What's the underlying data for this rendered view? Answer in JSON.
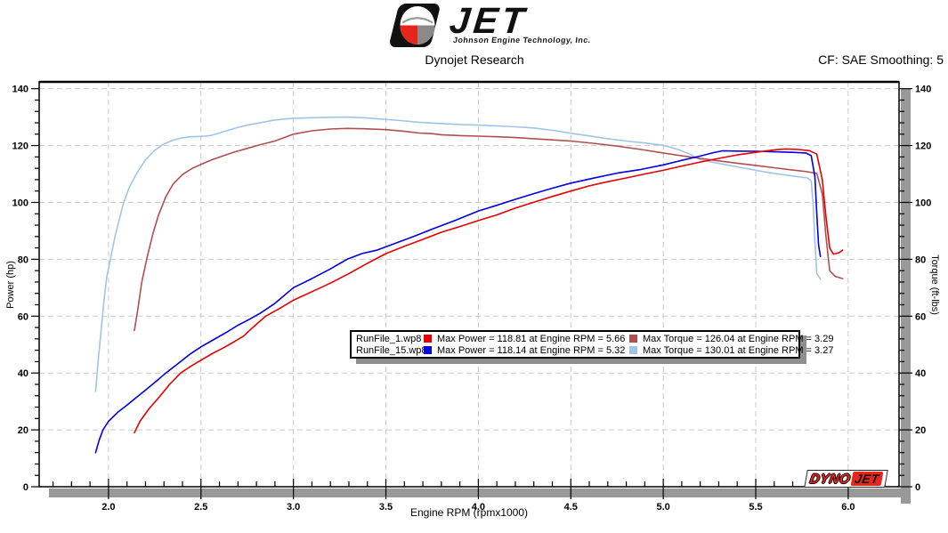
{
  "header": {
    "logo": {
      "jet_text": "JET",
      "tagline": "Johnson Engine Technology, Inc."
    },
    "subtitle": "Dynojet Research",
    "smoothing_label": "CF: SAE Smoothing: 5"
  },
  "legend": {
    "rows": [
      {
        "file": "RunFile_1.wp8",
        "power_color": "#e60000",
        "power_label": "Max Power = 118.81 at Engine RPM = 5.66",
        "torque_color": "#b04f4f",
        "torque_label": "Max Torque = 126.04 at Engine RPM = 3.29"
      },
      {
        "file": "RunFile_15.wp8",
        "power_color": "#0000e0",
        "power_label": "Max Power = 118.14 at Engine RPM = 5.32",
        "torque_color": "#a0c4e8",
        "torque_label": "Max Torque = 130.01 at Engine RPM = 3.27"
      }
    ]
  },
  "watermark": {
    "dyno": "DYNO",
    "jet": "JET"
  },
  "chart_data": {
    "type": "line",
    "xlabel": "Engine RPM (rpmx1000)",
    "ylabel_left": "Power (hp)",
    "ylabel_right": "Torque (ft-lbs)",
    "xlim": [
      1.625,
      6.275
    ],
    "ylim": [
      0,
      142.4
    ],
    "x_major_ticks": [
      2.0,
      2.5,
      3.0,
      3.5,
      4.0,
      4.5,
      5.0,
      5.5,
      6.0
    ],
    "x_tick_labels": [
      "2.0",
      "2.5",
      "3.0",
      "3.5",
      "4.0",
      "4.5",
      "5.0",
      "5.5",
      "6.0"
    ],
    "x_minor_step": 0.1,
    "y_major_ticks": [
      0,
      20,
      40,
      60,
      80,
      100,
      120,
      140
    ],
    "y_tick_labels": [
      "0",
      "20",
      "40",
      "60",
      "80",
      "100",
      "120",
      "140"
    ],
    "y_minor_step": 4,
    "grid": "dashed-major",
    "legend_position": "center",
    "series": [
      {
        "name": "runfile-15-torque",
        "run": "RunFile_15.wp8",
        "unit": "ft-lbs",
        "color": "#a0c4e8",
        "points": [
          [
            1.93,
            33.5
          ],
          [
            1.945,
            45
          ],
          [
            1.96,
            55
          ],
          [
            1.975,
            65
          ],
          [
            1.99,
            73.5
          ],
          [
            2.01,
            80
          ],
          [
            2.035,
            88
          ],
          [
            2.06,
            94.5
          ],
          [
            2.08,
            99.5
          ],
          [
            2.11,
            105
          ],
          [
            2.15,
            110
          ],
          [
            2.2,
            115
          ],
          [
            2.25,
            118.3
          ],
          [
            2.3,
            120.6
          ],
          [
            2.35,
            121.9
          ],
          [
            2.4,
            122.7
          ],
          [
            2.44,
            123.1
          ],
          [
            2.5,
            123.2
          ],
          [
            2.55,
            123.5
          ],
          [
            2.6,
            124.4
          ],
          [
            2.65,
            125.4
          ],
          [
            2.7,
            126.4
          ],
          [
            2.76,
            127.3
          ],
          [
            2.82,
            128
          ],
          [
            2.9,
            129
          ],
          [
            3.0,
            129.6
          ],
          [
            3.1,
            129.8
          ],
          [
            3.2,
            129.95
          ],
          [
            3.27,
            130.01
          ],
          [
            3.38,
            129.8
          ],
          [
            3.48,
            129.3
          ],
          [
            3.58,
            128.8
          ],
          [
            3.68,
            128.2
          ],
          [
            3.78,
            127.8
          ],
          [
            3.9,
            127.4
          ],
          [
            4.0,
            127.2
          ],
          [
            4.1,
            126.9
          ],
          [
            4.2,
            126.6
          ],
          [
            4.3,
            126.2
          ],
          [
            4.42,
            125.2
          ],
          [
            4.5,
            124.3
          ],
          [
            4.6,
            123.4
          ],
          [
            4.7,
            122.4
          ],
          [
            4.8,
            121.6
          ],
          [
            4.9,
            120.9
          ],
          [
            5.0,
            120.1
          ],
          [
            5.08,
            118.6
          ],
          [
            5.15,
            116.8
          ],
          [
            5.2,
            115
          ],
          [
            5.3,
            113.7
          ],
          [
            5.4,
            112.5
          ],
          [
            5.5,
            111.3
          ],
          [
            5.6,
            110.2
          ],
          [
            5.7,
            109.3
          ],
          [
            5.78,
            108.6
          ],
          [
            5.8,
            107.5
          ],
          [
            5.81,
            100
          ],
          [
            5.82,
            86
          ],
          [
            5.83,
            75
          ],
          [
            5.85,
            73
          ]
        ]
      },
      {
        "name": "runfile-1-torque",
        "run": "RunFile_1.wp8",
        "unit": "ft-lbs",
        "color": "#b04f4f",
        "points": [
          [
            2.14,
            55
          ],
          [
            2.16,
            63
          ],
          [
            2.18,
            72
          ],
          [
            2.21,
            81
          ],
          [
            2.24,
            89
          ],
          [
            2.27,
            95.5
          ],
          [
            2.31,
            102
          ],
          [
            2.35,
            106.5
          ],
          [
            2.4,
            109.8
          ],
          [
            2.45,
            111.9
          ],
          [
            2.5,
            113.4
          ],
          [
            2.56,
            115
          ],
          [
            2.62,
            116.4
          ],
          [
            2.68,
            117.7
          ],
          [
            2.75,
            119
          ],
          [
            2.82,
            120.3
          ],
          [
            2.9,
            121.6
          ],
          [
            3.0,
            124
          ],
          [
            3.1,
            125.2
          ],
          [
            3.2,
            125.8
          ],
          [
            3.29,
            126.04
          ],
          [
            3.38,
            125.9
          ],
          [
            3.5,
            125.6
          ],
          [
            3.6,
            125
          ],
          [
            3.68,
            124.4
          ],
          [
            3.75,
            124.2
          ],
          [
            3.8,
            123.8
          ],
          [
            3.9,
            123.5
          ],
          [
            4.0,
            123.3
          ],
          [
            4.1,
            123.1
          ],
          [
            4.2,
            122.8
          ],
          [
            4.3,
            122.4
          ],
          [
            4.4,
            122
          ],
          [
            4.5,
            121.6
          ],
          [
            4.62,
            120.8
          ],
          [
            4.75,
            119.8
          ],
          [
            4.88,
            118.6
          ],
          [
            5.0,
            117.4
          ],
          [
            5.1,
            116.4
          ],
          [
            5.2,
            115.5
          ],
          [
            5.3,
            114.6
          ],
          [
            5.4,
            113.8
          ],
          [
            5.5,
            113
          ],
          [
            5.6,
            112.2
          ],
          [
            5.7,
            111.4
          ],
          [
            5.78,
            110.8
          ],
          [
            5.83,
            110.2
          ],
          [
            5.86,
            103
          ],
          [
            5.88,
            88
          ],
          [
            5.9,
            76
          ],
          [
            5.93,
            74
          ],
          [
            5.97,
            73.2
          ]
        ]
      },
      {
        "name": "runfile-15-power",
        "run": "RunFile_15.wp8",
        "unit": "hp",
        "color": "#0000e0",
        "points": [
          [
            1.93,
            12
          ],
          [
            1.95,
            16.5
          ],
          [
            1.97,
            20
          ],
          [
            2.0,
            23
          ],
          [
            2.05,
            26.2
          ],
          [
            2.1,
            28.7
          ],
          [
            2.15,
            31.4
          ],
          [
            2.2,
            34
          ],
          [
            2.26,
            37.2
          ],
          [
            2.31,
            40
          ],
          [
            2.38,
            43.5
          ],
          [
            2.44,
            46.6
          ],
          [
            2.5,
            49.2
          ],
          [
            2.57,
            51.8
          ],
          [
            2.64,
            54.4
          ],
          [
            2.7,
            56.8
          ],
          [
            2.76,
            58.8
          ],
          [
            2.82,
            61
          ],
          [
            2.9,
            64.5
          ],
          [
            3.0,
            70
          ],
          [
            3.1,
            73.2
          ],
          [
            3.2,
            76.6
          ],
          [
            3.29,
            80
          ],
          [
            3.37,
            82
          ],
          [
            3.45,
            83.2
          ],
          [
            3.55,
            85.6
          ],
          [
            3.65,
            88
          ],
          [
            3.75,
            90.6
          ],
          [
            3.88,
            93.8
          ],
          [
            4.0,
            97
          ],
          [
            4.1,
            99
          ],
          [
            4.2,
            101.1
          ],
          [
            4.3,
            103.1
          ],
          [
            4.4,
            105
          ],
          [
            4.5,
            106.8
          ],
          [
            4.62,
            108.5
          ],
          [
            4.75,
            110.3
          ],
          [
            4.88,
            111.6
          ],
          [
            5.0,
            113.2
          ],
          [
            5.1,
            114.8
          ],
          [
            5.2,
            116.3
          ],
          [
            5.27,
            117.5
          ],
          [
            5.32,
            118.14
          ],
          [
            5.4,
            118.05
          ],
          [
            5.5,
            118
          ],
          [
            5.6,
            117.8
          ],
          [
            5.7,
            117.6
          ],
          [
            5.77,
            117.4
          ],
          [
            5.8,
            116.5
          ],
          [
            5.82,
            109
          ],
          [
            5.83,
            96
          ],
          [
            5.84,
            85
          ],
          [
            5.85,
            81
          ]
        ]
      },
      {
        "name": "runfile-1-power",
        "run": "RunFile_1.wp8",
        "unit": "hp",
        "color": "#e60000",
        "points": [
          [
            2.14,
            19
          ],
          [
            2.17,
            23
          ],
          [
            2.22,
            27.5
          ],
          [
            2.28,
            32
          ],
          [
            2.33,
            36
          ],
          [
            2.39,
            40
          ],
          [
            2.45,
            42.6
          ],
          [
            2.5,
            44.5
          ],
          [
            2.56,
            46.8
          ],
          [
            2.62,
            48.8
          ],
          [
            2.68,
            51
          ],
          [
            2.73,
            53
          ],
          [
            2.78,
            56
          ],
          [
            2.85,
            60
          ],
          [
            2.92,
            62.5
          ],
          [
            3.0,
            65.6
          ],
          [
            3.1,
            68.6
          ],
          [
            3.2,
            71.6
          ],
          [
            3.3,
            75
          ],
          [
            3.4,
            78.6
          ],
          [
            3.5,
            82
          ],
          [
            3.6,
            84.6
          ],
          [
            3.7,
            87
          ],
          [
            3.8,
            89.5
          ],
          [
            3.9,
            91.5
          ],
          [
            4.0,
            93.6
          ],
          [
            4.1,
            95.6
          ],
          [
            4.2,
            98
          ],
          [
            4.3,
            100.1
          ],
          [
            4.4,
            102.1
          ],
          [
            4.5,
            104
          ],
          [
            4.6,
            105.8
          ],
          [
            4.7,
            107.3
          ],
          [
            4.8,
            108.6
          ],
          [
            4.9,
            110
          ],
          [
            5.0,
            111.3
          ],
          [
            5.1,
            112.8
          ],
          [
            5.2,
            114.2
          ],
          [
            5.3,
            115.5
          ],
          [
            5.4,
            116.7
          ],
          [
            5.5,
            117.6
          ],
          [
            5.6,
            118.5
          ],
          [
            5.66,
            118.81
          ],
          [
            5.73,
            118.6
          ],
          [
            5.79,
            118.2
          ],
          [
            5.83,
            117
          ],
          [
            5.86,
            108
          ],
          [
            5.88,
            95
          ],
          [
            5.9,
            84
          ],
          [
            5.92,
            81.8
          ],
          [
            5.95,
            82.3
          ],
          [
            5.97,
            83.2
          ]
        ]
      }
    ],
    "max_annotations": [
      {
        "run": "RunFile_1.wp8",
        "max_power": 118.81,
        "max_power_rpm": 5.66,
        "max_torque": 126.04,
        "max_torque_rpm": 3.29
      },
      {
        "run": "RunFile_15.wp8",
        "max_power": 118.14,
        "max_power_rpm": 5.32,
        "max_torque": 130.01,
        "max_torque_rpm": 3.27
      }
    ]
  }
}
